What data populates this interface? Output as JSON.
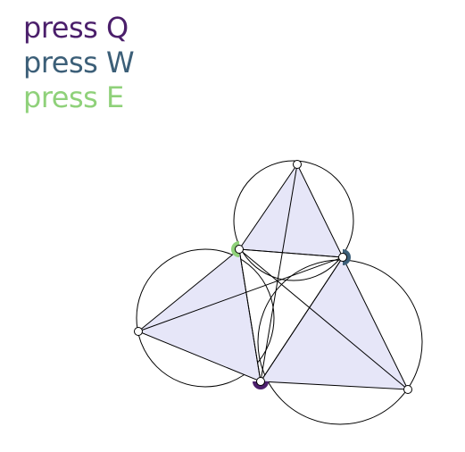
{
  "colors": {
    "background": "#ffffff",
    "stroke": "#000000",
    "triangle_fill": "#e6e6f8",
    "point_fill": "#ffffff"
  },
  "key_hints": [
    {
      "text": "press Q",
      "key": "Q",
      "color": "#4b1f6b"
    },
    {
      "text": "press W",
      "key": "W",
      "color": "#3c5f78"
    },
    {
      "text": "press E",
      "key": "E",
      "color": "#8fd17a"
    }
  ],
  "handles": [
    {
      "name": "handle-q",
      "key": "Q",
      "color": "#4b1f6b",
      "state": "half-filled"
    },
    {
      "name": "handle-w",
      "key": "W",
      "color": "#3c5f78",
      "state": "half-filled"
    },
    {
      "name": "handle-e",
      "key": "E",
      "color": "#8fd17a",
      "state": "half-filled"
    }
  ],
  "triangle_count": 3,
  "circle_count": 3,
  "apex_point_count": 3
}
